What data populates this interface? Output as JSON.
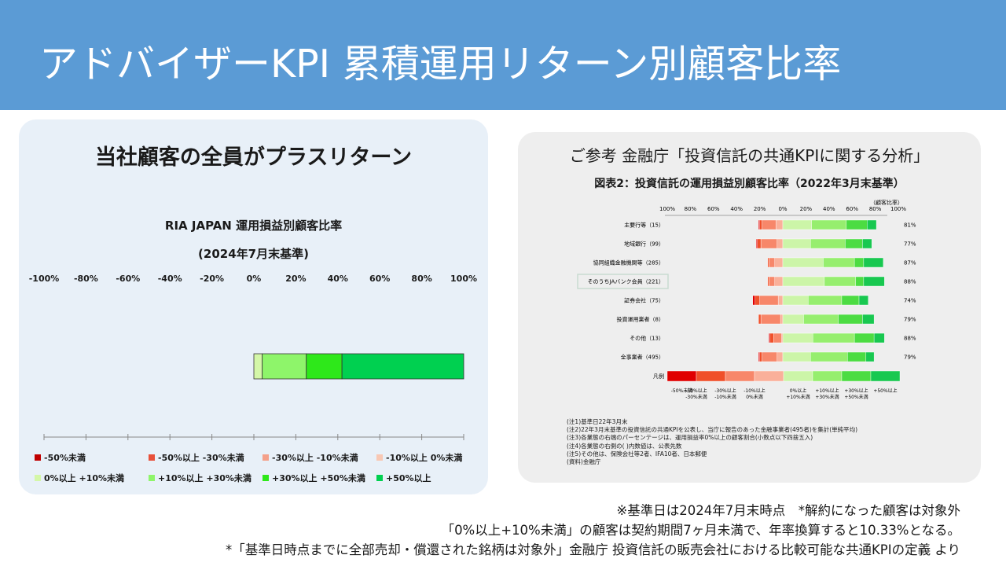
{
  "header": {
    "title": "アドバイザーKPI 累積運用リターン別顧客比率"
  },
  "left": {
    "headline": "当社顧客の全員がプラスリターン",
    "chart_title_1": "RIA JAPAN 運用損益別顧客比率",
    "chart_title_2": "(2024年7月末基準)",
    "ticks": [
      "-100%",
      "-80%",
      "-60%",
      "-40%",
      "-20%",
      "0%",
      "20%",
      "40%",
      "60%",
      "80%",
      "100%"
    ],
    "legend": [
      {
        "label": "-50%未満",
        "color": "#c00000"
      },
      {
        "label": "-50%以上 -30%未満",
        "color": "#e8503a"
      },
      {
        "label": "-30%以上 -10%未満",
        "color": "#f4a08a"
      },
      {
        "label": "-10%以上 0%未満",
        "color": "#f8c8b4"
      },
      {
        "label": "0%以上 +10%未満",
        "color": "#d4f7a8"
      },
      {
        "label": "+10%以上 +30%未満",
        "color": "#8ef56a"
      },
      {
        "label": "+30%以上 +50%未満",
        "color": "#2ee81a"
      },
      {
        "label": "+50%以上",
        "color": "#00d050"
      }
    ]
  },
  "chart_data": {
    "type": "bar",
    "orientation": "horizontal-stacked",
    "title": "RIA JAPAN 運用損益別顧客比率",
    "subtitle": "(2024年7月末基準)",
    "xlim": [
      -100,
      100
    ],
    "series": [
      {
        "name": "0%以上 +10%未満",
        "values": [
          4
        ]
      },
      {
        "name": "+10%以上 +30%未満",
        "values": [
          21
        ]
      },
      {
        "name": "+30%以上 +50%未満",
        "values": [
          17
        ]
      },
      {
        "name": "+50%以上",
        "values": [
          58
        ]
      }
    ]
  },
  "right": {
    "title": "ご参考 金融庁「投資信託の共通KPIに関する分析」",
    "fig_title": "図表2：投資信託の運用損益別顧客比率（2022年3月末基準）",
    "ticks": [
      "100%",
      "80%",
      "60%",
      "40%",
      "20%",
      "0%",
      "20%",
      "40%",
      "60%",
      "80%",
      "100%"
    ],
    "ratio_header": "（顧客比率）",
    "rows": [
      {
        "label": "主要行等（15）",
        "ratio": "81%",
        "neg": [
          1,
          2,
          12,
          6
        ],
        "pos": [
          25,
          30,
          18,
          8
        ]
      },
      {
        "label": "地域銀行（99）",
        "ratio": "77%",
        "neg": [
          1,
          3,
          14,
          5
        ],
        "pos": [
          24,
          30,
          15,
          8
        ]
      },
      {
        "label": "協同組織金融機関等（285）",
        "ratio": "87%",
        "neg": [
          0,
          1,
          5,
          7
        ],
        "pos": [
          35,
          27,
          8,
          17
        ]
      },
      {
        "label": "そのうちJAバンク会員（221）",
        "ratio": "88%",
        "neg": [
          0,
          1,
          5,
          7
        ],
        "pos": [
          36,
          27,
          7,
          18
        ]
      },
      {
        "label": "証券会社（75）",
        "ratio": "74%",
        "neg": [
          2,
          4,
          16,
          4
        ],
        "pos": [
          22,
          29,
          15,
          8
        ]
      },
      {
        "label": "投資運用業者（8）",
        "ratio": "79%",
        "neg": [
          0,
          2,
          17,
          2
        ],
        "pos": [
          18,
          30,
          21,
          10
        ]
      },
      {
        "label": "その他（13）",
        "ratio": "88%",
        "neg": [
          1,
          3,
          7,
          1
        ],
        "pos": [
          26,
          36,
          17,
          9
        ]
      },
      {
        "label": "全事業者（495）",
        "ratio": "79%",
        "neg": [
          1,
          2,
          13,
          5
        ],
        "pos": [
          24,
          32,
          16,
          7
        ]
      }
    ],
    "legend_label": "凡例",
    "legend_cats": [
      "-50%未満",
      "-50%以上\n-30%未満",
      "-30%以上\n-10%未満",
      "-10%以上\n0%未満",
      "0%以上\n+10%未満",
      "+10%以上\n+30%未満",
      "+30%以上\n+50%未満",
      "+50%以上"
    ],
    "colors": [
      "#e00000",
      "#f0502a",
      "#f7876a",
      "#fab09a",
      "#ccf5a8",
      "#96ee6e",
      "#4cdc42",
      "#18c850"
    ],
    "notes": [
      "(注1)基準日22年3月末",
      "(注2)22年3月末基準の投資信託の共通KPIを公表し、当庁に報告のあった金融事業者(495者)を集計(単純平均)",
      "(注3)各業態の右端のパーセンテージは、運用損益率0%以上の顧客割合(小数点以下四捨五入)",
      "(注4)各業態の右側の( )内数値は、公表先数",
      "(注5)その他は、保険会社等2者、IFA10者、日本郵便",
      "(資料)金融庁"
    ]
  },
  "footer": {
    "line1": "※基準日は2024年7月末時点　*解約になった顧客は対象外",
    "line2": "「0%以上+10%未満」の顧客は契約期間7ヶ月未満で、年率換算すると10.33%となる。",
    "line3": "*「基準日時点までに全部売却・償還された銘柄は対象外」金融庁 投資信託の販売会社における比較可能な共通KPIの定義 より"
  }
}
